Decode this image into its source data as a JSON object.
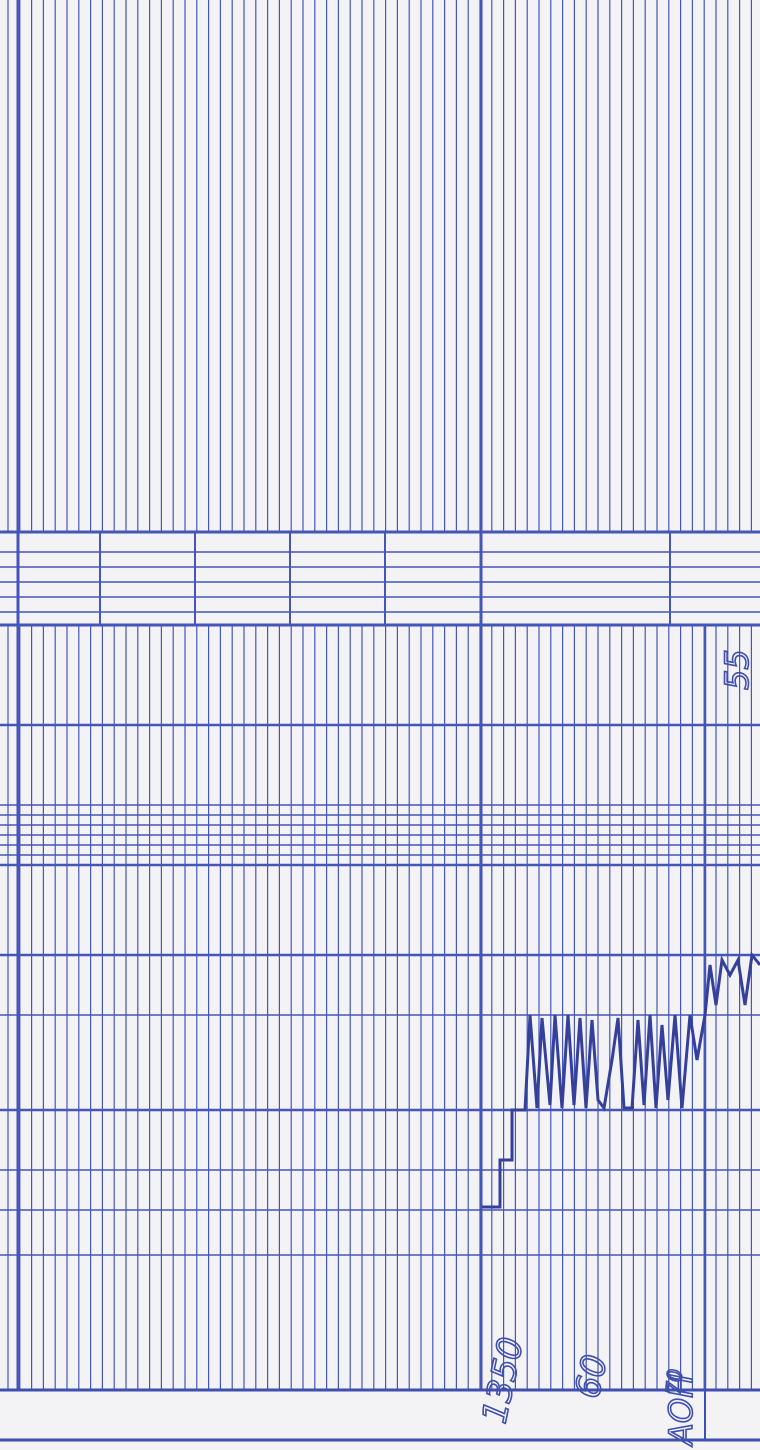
{
  "annotations": {
    "time_start": "1350",
    "time_mid": "60",
    "time_end": "70",
    "label": "АОН",
    "corner": "55"
  }
}
